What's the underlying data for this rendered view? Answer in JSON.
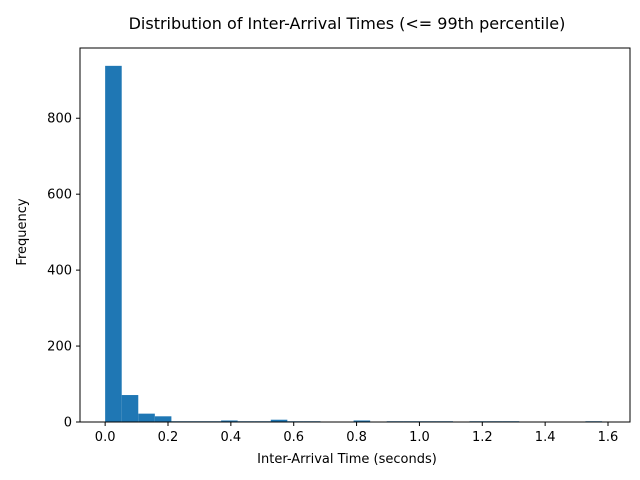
{
  "chart_data": {
    "type": "bar",
    "title": "Distribution of Inter-Arrival Times (<= 99th percentile)",
    "xlabel": "Inter-Arrival Time (seconds)",
    "ylabel": "Frequency",
    "xlim": [
      -0.08,
      1.67
    ],
    "ylim": [
      0,
      985
    ],
    "xticks": [
      0.0,
      0.2,
      0.4,
      0.6,
      0.8,
      1.0,
      1.2,
      1.4,
      1.6
    ],
    "xtick_labels": [
      "0.0",
      "0.2",
      "0.4",
      "0.6",
      "0.8",
      "1.0",
      "1.2",
      "1.4",
      "1.6"
    ],
    "yticks": [
      0,
      200,
      400,
      600,
      800
    ],
    "ytick_labels": [
      "0",
      "200",
      "400",
      "600",
      "800"
    ],
    "bar_color": "#1f77b4",
    "grid": false,
    "bins": {
      "start": 0.0,
      "width": 0.0527,
      "counts": [
        938,
        71,
        22,
        15,
        2,
        2,
        2,
        4,
        2,
        2,
        6,
        2,
        2,
        0,
        0,
        4,
        0,
        2,
        2,
        2,
        2,
        0,
        2,
        2,
        2,
        0,
        0,
        0,
        0,
        2
      ]
    }
  }
}
